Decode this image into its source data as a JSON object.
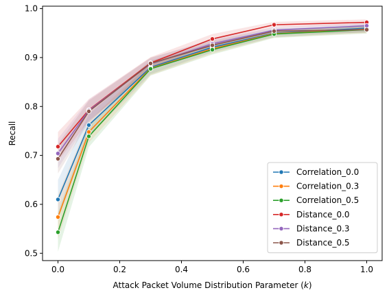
{
  "chart_data": {
    "type": "line",
    "title": "",
    "xlabel_main": "Attack Packet Volume Distribution Parameter (",
    "xlabel_var": "k",
    "xlabel_close": ")",
    "ylabel": "Recall",
    "xlim": [
      -0.05,
      1.05
    ],
    "ylim": [
      0.485,
      1.005
    ],
    "xticks": [
      0.0,
      0.2,
      0.4,
      0.6,
      0.8,
      1.0
    ],
    "xtick_labels": [
      "0.0",
      "0.2",
      "0.4",
      "0.6",
      "0.8",
      "1.0"
    ],
    "yticks": [
      0.5,
      0.6,
      0.7,
      0.8,
      0.9,
      1.0
    ],
    "ytick_labels": [
      "0.5",
      "0.6",
      "0.7",
      "0.8",
      "0.9",
      "1.0"
    ],
    "grid": false,
    "legend_position": "lower-right",
    "x": [
      0.0,
      0.1,
      0.3,
      0.5,
      0.7,
      1.0
    ],
    "series": [
      {
        "name": "Correlation_0.0",
        "color": "#1f77b4",
        "values": [
          0.61,
          0.762,
          0.88,
          0.921,
          0.95,
          0.96
        ],
        "band": [
          0.04,
          0.022,
          0.014,
          0.01,
          0.008,
          0.008
        ]
      },
      {
        "name": "Correlation_0.3",
        "color": "#ff7f0e",
        "values": [
          0.574,
          0.748,
          0.878,
          0.918,
          0.949,
          0.958
        ],
        "band": [
          0.045,
          0.022,
          0.014,
          0.01,
          0.008,
          0.008
        ]
      },
      {
        "name": "Correlation_0.5",
        "color": "#2ca02c",
        "values": [
          0.543,
          0.739,
          0.877,
          0.916,
          0.948,
          0.957
        ],
        "band": [
          0.04,
          0.022,
          0.014,
          0.01,
          0.008,
          0.008
        ]
      },
      {
        "name": "Distance_0.0",
        "color": "#d62728",
        "values": [
          0.718,
          0.793,
          0.889,
          0.938,
          0.967,
          0.972
        ],
        "band": [
          0.03,
          0.022,
          0.012,
          0.01,
          0.006,
          0.006
        ]
      },
      {
        "name": "Distance_0.3",
        "color": "#9467bd",
        "values": [
          0.704,
          0.792,
          0.887,
          0.928,
          0.956,
          0.965
        ],
        "band": [
          0.03,
          0.022,
          0.012,
          0.01,
          0.006,
          0.006
        ]
      },
      {
        "name": "Distance_0.5",
        "color": "#8c564b",
        "values": [
          0.693,
          0.79,
          0.888,
          0.925,
          0.954,
          0.957
        ],
        "band": [
          0.03,
          0.022,
          0.012,
          0.01,
          0.006,
          0.006
        ]
      }
    ]
  }
}
